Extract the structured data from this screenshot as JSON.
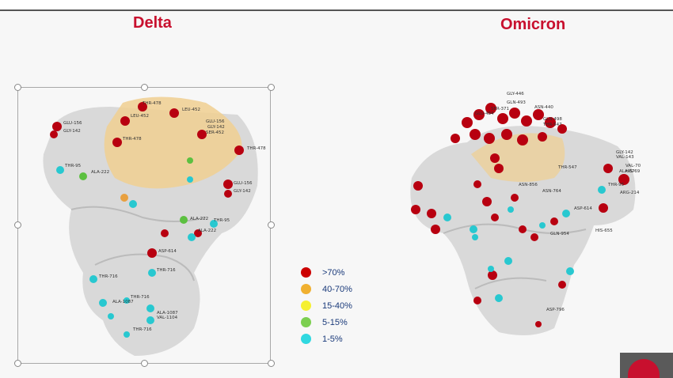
{
  "titles": {
    "delta": "Delta",
    "omicron": "Omicron"
  },
  "legend": [
    {
      "label": ">70%",
      "color": "#cc0000"
    },
    {
      "label": "40-70%",
      "color": "#f0b030"
    },
    {
      "label": "15-40%",
      "color": "#f5f030"
    },
    {
      "label": "5-15%",
      "color": "#7ccf50"
    },
    {
      "label": "1-5%",
      "color": "#30d8e0"
    }
  ],
  "delta_labels": [
    "THR-478",
    "LEU-452",
    "LEU-452",
    "GLU-156",
    "GLY-142",
    "GLU-156",
    "GLY-142",
    "SER-452",
    "THR-478",
    "THR-478",
    "THR-95",
    "ALA-222",
    "GLU-156",
    "GLY-142",
    "ALA-222",
    "THR-95",
    "ALA-222",
    "ASP-614",
    "THR-716",
    "THR-716",
    "THR-716",
    "ALA-1087",
    "ALA-1087",
    "VAL-1104",
    "THR-716"
  ],
  "omicron_labels": [
    "GLY-446",
    "GLN-493",
    "SER-371",
    "GLU-484",
    "GLN-498",
    "THR-547",
    "ASN-440",
    "GLY-142",
    "VAL-143",
    "VAL-70",
    "HIS-69",
    "ALA-67",
    "THR-95",
    "ARG-214",
    "THR-547",
    "ASN-856",
    "ASN-764",
    "GLN-954",
    "ASP-614",
    "HIS-655",
    "ASP-796"
  ]
}
